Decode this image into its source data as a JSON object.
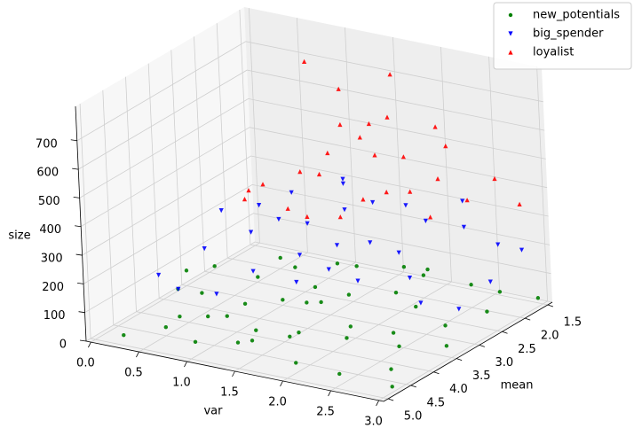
{
  "chart_data": {
    "type": "scatter3d",
    "xlabel": "var",
    "ylabel": "mean",
    "zlabel": "size",
    "xlim": [
      -0.05,
      3.05
    ],
    "ylim": [
      1.4,
      5.1
    ],
    "zlim": [
      0,
      820
    ],
    "xticks": [
      {
        "value": 0,
        "label": "0.0"
      },
      0.5,
      {
        "value": 1,
        "label": "1.0"
      },
      1.5,
      {
        "value": 2,
        "label": "2.0"
      },
      2.5,
      {
        "value": 3,
        "label": "3.0"
      }
    ],
    "yticks": [
      1.5,
      {
        "value": 2,
        "label": "2.0"
      },
      2.5,
      {
        "value": 3,
        "label": "3.0"
      },
      3.5,
      {
        "value": 4,
        "label": "4.0"
      },
      4.5,
      {
        "value": 5,
        "label": "5.0"
      }
    ],
    "zticks": [
      0,
      100,
      200,
      300,
      400,
      500,
      600,
      700
    ],
    "grid": true,
    "legend": "upper right",
    "series": [
      {
        "name": "new_potentials",
        "color": "#008000",
        "marker": "o",
        "x": [
          0.5,
          0.8,
          1.0,
          1.2,
          1.5,
          1.3,
          1.8,
          2.0,
          2.2,
          0.6,
          0.9,
          1.1,
          1.6,
          2.4,
          2.6,
          2.8,
          3.0,
          2.9,
          2.5,
          1.9,
          1.4,
          1.7,
          0.4,
          0.2,
          0.3,
          1.0,
          1.2,
          2.1,
          2.7,
          3.0,
          2.3,
          1.6,
          0.7,
          1.9,
          2.5,
          1.3,
          0.9,
          2.0,
          2.8,
          1.5,
          1.1,
          0.5,
          2.2,
          1.8,
          3.0
        ],
        "y": [
          4.5,
          4.2,
          3.8,
          4.0,
          3.5,
          4.6,
          3.2,
          3.6,
          4.1,
          3.9,
          3.3,
          2.9,
          2.6,
          3.0,
          3.8,
          4.4,
          4.8,
          2.5,
          2.0,
          2.2,
          3.1,
          4.3,
          4.0,
          4.8,
          3.6,
          4.9,
          3.4,
          2.8,
          1.8,
          1.6,
          3.3,
          3.9,
          4.6,
          4.6,
          4.9,
          2.4,
          2.8,
          1.9,
          3.2,
          4.7,
          4.4,
          3.4,
          2.4,
          3.8,
          3.6
        ],
        "z": [
          30,
          60,
          80,
          20,
          90,
          40,
          110,
          50,
          70,
          100,
          120,
          130,
          140,
          90,
          40,
          30,
          20,
          60,
          80,
          120,
          100,
          60,
          110,
          10,
          130,
          50,
          70,
          100,
          50,
          30,
          20,
          30,
          90,
          10,
          40,
          110,
          140,
          90,
          70,
          70,
          100,
          140,
          130,
          140,
          50
        ]
      },
      {
        "name": "big_spender",
        "color": "#0000ff",
        "marker": "v",
        "x": [
          0.5,
          0.8,
          1.0,
          1.2,
          1.5,
          1.7,
          1.4,
          1.9,
          2.2,
          2.5,
          2.8,
          3.0,
          0.3,
          0.6,
          1.1,
          1.3,
          1.6,
          2.0,
          2.4,
          2.7,
          0.9,
          1.2,
          1.8,
          2.1,
          0.4,
          2.9,
          1.5,
          1.0,
          2.3,
          1.7,
          0.7,
          3.0
        ],
        "y": [
          3.6,
          3.2,
          3.0,
          2.8,
          2.6,
          2.4,
          3.4,
          2.9,
          2.3,
          2.1,
          2.0,
          2.6,
          4.2,
          4.4,
          3.8,
          2.2,
          3.0,
          3.4,
          3.1,
          3.5,
          2.5,
          2.0,
          1.9,
          2.7,
          3.0,
          1.7,
          3.7,
          4.4,
          1.7,
          3.4,
          2.8,
          3.3
        ],
        "z": [
          220,
          260,
          300,
          280,
          330,
          350,
          240,
          270,
          310,
          290,
          240,
          180,
          170,
          160,
          200,
          370,
          250,
          190,
          200,
          170,
          340,
          360,
          300,
          230,
          290,
          200,
          180,
          170,
          330,
          210,
          310,
          150
        ]
      },
      {
        "name": "loyalist",
        "color": "#ff0000",
        "marker": "^",
        "x": [
          1.0,
          1.2,
          1.4,
          1.6,
          1.3,
          0.8,
          1.8,
          2.0,
          2.2,
          2.4,
          1.1,
          0.9,
          1.5,
          1.7,
          1.9,
          2.6,
          2.9,
          0.7,
          1.3,
          2.1,
          2.3,
          1.0,
          1.4,
          1.5,
          1.6,
          1.2,
          2.0,
          0.5
        ],
        "y": [
          2.5,
          2.3,
          2.0,
          2.2,
          2.7,
          2.9,
          1.9,
          2.2,
          2.0,
          1.8,
          1.8,
          2.1,
          1.6,
          2.6,
          2.5,
          1.6,
          1.7,
          3.1,
          3.0,
          1.6,
          2.4,
          1.6,
          1.7,
          1.5,
          2.9,
          3.2,
          1.6,
          2.6
        ],
        "z": [
          420,
          480,
          520,
          600,
          450,
          400,
          470,
          390,
          430,
          350,
          650,
          760,
          560,
          380,
          410,
          420,
          360,
          360,
          330,
          500,
          340,
          500,
          430,
          700,
          340,
          370,
          560,
          330
        ]
      }
    ]
  }
}
